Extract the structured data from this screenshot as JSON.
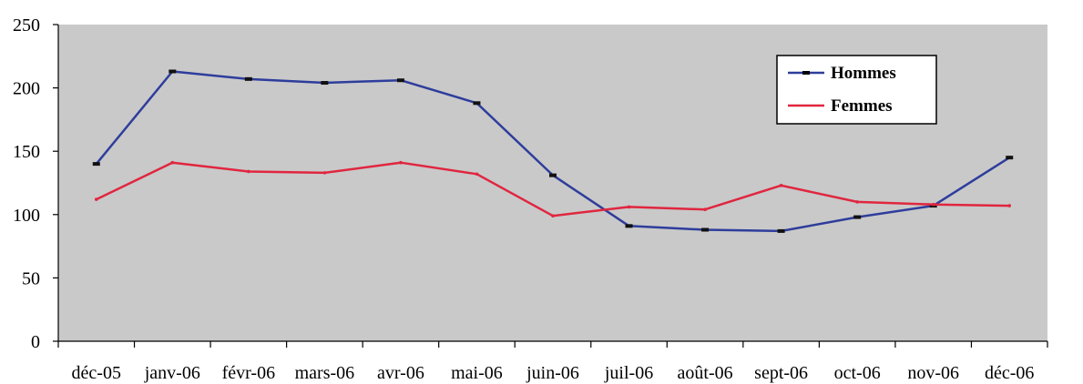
{
  "chart_data": {
    "type": "line",
    "title": "",
    "xlabel": "",
    "ylabel": "",
    "categories": [
      "déc-05",
      "janv-06",
      "févr-06",
      "mars-06",
      "avr-06",
      "mai-06",
      "juin-06",
      "juil-06",
      "août-06",
      "sept-06",
      "oct-06",
      "nov-06",
      "déc-06"
    ],
    "ylim": [
      0,
      250
    ],
    "yticks": [
      0,
      50,
      100,
      150,
      200,
      250
    ],
    "grid": false,
    "legend_position": "top-right",
    "background_color": "#c9c9c9",
    "series": [
      {
        "name": "Hommes",
        "color": "#2e3d9c",
        "values": [
          140,
          213,
          207,
          204,
          206,
          188,
          131,
          91,
          88,
          87,
          98,
          107,
          145
        ]
      },
      {
        "name": "Femmes",
        "color": "#e0263f",
        "values": [
          112,
          141,
          134,
          133,
          141,
          132,
          99,
          106,
          104,
          123,
          110,
          108,
          107
        ]
      }
    ]
  }
}
